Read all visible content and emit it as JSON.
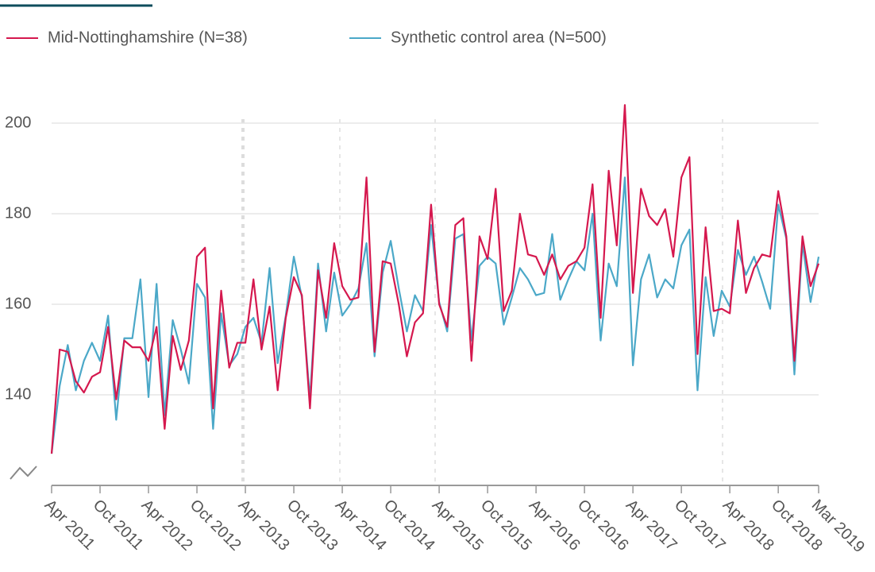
{
  "chart_data": {
    "type": "line",
    "categories": [
      "Apr 2011",
      null,
      null,
      null,
      null,
      null,
      "Oct 2011",
      null,
      null,
      null,
      null,
      null,
      "Apr 2012",
      null,
      null,
      null,
      null,
      null,
      "Oct 2012",
      null,
      null,
      null,
      null,
      null,
      "Apr 2013",
      null,
      null,
      null,
      null,
      null,
      "Oct 2013",
      null,
      null,
      null,
      null,
      null,
      "Apr 2014",
      null,
      null,
      null,
      null,
      null,
      "Oct 2014",
      null,
      null,
      null,
      null,
      null,
      "Apr 2015",
      null,
      null,
      null,
      null,
      null,
      "Oct 2015",
      null,
      null,
      null,
      null,
      null,
      "Apr 2016",
      null,
      null,
      null,
      null,
      null,
      "Oct 2016",
      null,
      null,
      null,
      null,
      null,
      "Apr 2017",
      null,
      null,
      null,
      null,
      null,
      "Oct 2017",
      null,
      null,
      null,
      null,
      null,
      "Apr 2018",
      null,
      null,
      null,
      null,
      null,
      "Oct 2018",
      null,
      null,
      null,
      null,
      "Mar 2019"
    ],
    "series": [
      {
        "name": "Mid-Nottinghamshire (N=38)",
        "color": "#d5184e",
        "values": [
          127,
          150,
          149.5,
          143,
          140.5,
          144,
          145,
          155,
          139,
          152,
          150.5,
          150.5,
          147.5,
          155,
          132.5,
          153,
          145.5,
          152,
          170.5,
          172.5,
          137,
          163,
          146,
          151.5,
          151.5,
          165.5,
          150,
          159.5,
          141,
          157,
          166,
          162,
          137,
          167.5,
          157,
          173.5,
          164,
          161,
          161.5,
          188,
          149.5,
          169.5,
          169,
          160,
          148.5,
          156,
          158,
          182,
          160,
          155,
          177.5,
          179,
          147.5,
          175,
          170,
          185.5,
          158.5,
          163,
          180,
          171,
          170.5,
          166.5,
          171,
          165.5,
          168.5,
          169.5,
          172.5,
          186.5,
          157,
          189.5,
          173,
          204,
          162.5,
          185.5,
          179.5,
          177.5,
          181,
          170.5,
          188,
          192.5,
          149,
          177,
          158.5,
          159,
          158,
          178.5,
          162.5,
          168,
          171,
          170.5,
          185,
          175,
          147.5,
          175,
          164,
          169
        ]
      },
      {
        "name": "Synthetic control area (N=500)",
        "color": "#4ba8c8",
        "values": [
          127,
          142,
          151,
          141,
          147.5,
          151.5,
          147.5,
          157.5,
          134.5,
          152.5,
          152.5,
          165.5,
          139.5,
          164.5,
          135.5,
          156.5,
          150,
          142.5,
          164.5,
          161.5,
          132.5,
          158,
          146.5,
          149,
          155,
          157,
          151.5,
          168,
          147,
          157.5,
          170.5,
          161.5,
          139,
          169,
          154,
          167,
          157.5,
          160,
          163.5,
          173.5,
          148.5,
          167,
          174,
          163.5,
          154,
          162,
          158.5,
          177.5,
          160.5,
          154,
          174.5,
          175.5,
          152,
          168.5,
          170.5,
          169,
          155.5,
          161.5,
          168,
          165.5,
          162,
          162.5,
          175.5,
          161,
          165.5,
          169.5,
          167.5,
          180,
          152,
          169,
          164,
          188,
          146.5,
          165.5,
          171,
          161.5,
          165.5,
          163.5,
          173,
          176.5,
          141,
          166,
          153,
          163,
          159.5,
          172,
          166.5,
          170.5,
          165,
          159,
          182,
          174.5,
          144.5,
          173.5,
          160.5,
          170.5
        ]
      }
    ],
    "ylim": [
      120,
      210
    ],
    "yticks": [
      140,
      160,
      180,
      200
    ],
    "grid": true
  }
}
